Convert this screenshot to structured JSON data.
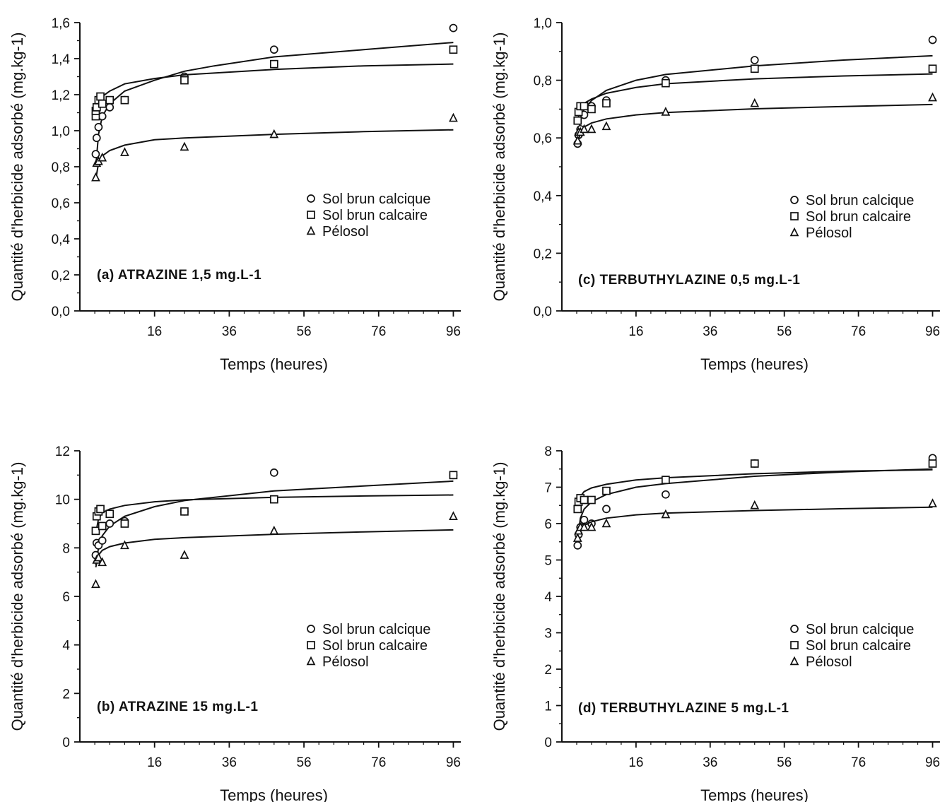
{
  "chart_data": [
    {
      "id": "a",
      "type": "scatter",
      "title": "(a) ATRAZINE 1,5 mg.L-1",
      "xlabel": "Temps (heures)",
      "ylabel": "Quantité d'herbicide adsorbé (mg.kg-1)",
      "xlim": [
        -4,
        98
      ],
      "ylim": [
        0,
        1.6
      ],
      "xticks": [
        "16",
        "36",
        "56",
        "76",
        "96"
      ],
      "yticks": [
        "0,0",
        "0,2",
        "0,4",
        "0,6",
        "0,8",
        "1,0",
        "1,2",
        "1,4",
        "1,6"
      ],
      "legend_position": "right",
      "series": [
        {
          "name": "Sol brun calcique",
          "marker": "circle",
          "points": [
            [
              0.25,
              0.87
            ],
            [
              0.5,
              0.96
            ],
            [
              1,
              1.02
            ],
            [
              2,
              1.08
            ],
            [
              4,
              1.13
            ],
            [
              8,
              1.17
            ],
            [
              24,
              1.3
            ],
            [
              48,
              1.45
            ],
            [
              96,
              1.57
            ]
          ],
          "fit": [
            [
              0.25,
              0.8
            ],
            [
              1,
              0.98
            ],
            [
              2,
              1.08
            ],
            [
              4,
              1.15
            ],
            [
              8,
              1.22
            ],
            [
              16,
              1.28
            ],
            [
              24,
              1.33
            ],
            [
              32,
              1.36
            ],
            [
              48,
              1.41
            ],
            [
              72,
              1.45
            ],
            [
              96,
              1.49
            ]
          ]
        },
        {
          "name": "Sol brun calcaire",
          "marker": "square",
          "points": [
            [
              0.25,
              1.08
            ],
            [
              0.25,
              1.11
            ],
            [
              0.5,
              1.13
            ],
            [
              1,
              1.17
            ],
            [
              1.5,
              1.19
            ],
            [
              2,
              1.15
            ],
            [
              4,
              1.17
            ],
            [
              8,
              1.17
            ],
            [
              24,
              1.28
            ],
            [
              48,
              1.37
            ],
            [
              96,
              1.45
            ]
          ],
          "fit": [
            [
              0.25,
              1.06
            ],
            [
              1,
              1.15
            ],
            [
              2,
              1.19
            ],
            [
              4,
              1.22
            ],
            [
              8,
              1.26
            ],
            [
              16,
              1.29
            ],
            [
              24,
              1.31
            ],
            [
              48,
              1.34
            ],
            [
              72,
              1.36
            ],
            [
              96,
              1.37
            ]
          ]
        },
        {
          "name": "Pélosol",
          "marker": "triangle",
          "points": [
            [
              0.25,
              0.74
            ],
            [
              0.5,
              0.82
            ],
            [
              1,
              0.83
            ],
            [
              2,
              0.85
            ],
            [
              8,
              0.88
            ],
            [
              24,
              0.91
            ],
            [
              48,
              0.98
            ],
            [
              96,
              1.07
            ]
          ],
          "fit": [
            [
              0.25,
              0.73
            ],
            [
              1,
              0.82
            ],
            [
              2,
              0.86
            ],
            [
              4,
              0.89
            ],
            [
              8,
              0.92
            ],
            [
              16,
              0.95
            ],
            [
              24,
              0.96
            ],
            [
              48,
              0.98
            ],
            [
              72,
              0.995
            ],
            [
              96,
              1.005
            ]
          ]
        }
      ]
    },
    {
      "id": "b",
      "type": "scatter",
      "title": "(b) ATRAZINE 15 mg.L-1",
      "xlabel": "Temps (heures)",
      "ylabel": "Quantité d'herbicide adsorbé (mg.kg-1)",
      "xlim": [
        -4,
        98
      ],
      "ylim": [
        0,
        12
      ],
      "xticks": [
        "16",
        "36",
        "56",
        "76",
        "96"
      ],
      "yticks": [
        "0",
        "2",
        "4",
        "6",
        "8",
        "10",
        "12"
      ],
      "legend_position": "right",
      "series": [
        {
          "name": "Sol brun calcique",
          "marker": "circle",
          "points": [
            [
              0.25,
              7.7
            ],
            [
              0.5,
              8.2
            ],
            [
              1,
              8.1
            ],
            [
              2,
              8.3
            ],
            [
              4,
              9.0
            ],
            [
              8,
              9.1
            ],
            [
              24,
              9.5
            ],
            [
              48,
              11.1
            ],
            [
              96,
              11.0
            ]
          ],
          "fit": [
            [
              0.25,
              7.3
            ],
            [
              1,
              8.0
            ],
            [
              2,
              8.5
            ],
            [
              4,
              8.9
            ],
            [
              8,
              9.3
            ],
            [
              16,
              9.7
            ],
            [
              24,
              9.95
            ],
            [
              48,
              10.35
            ],
            [
              72,
              10.55
            ],
            [
              96,
              10.75
            ]
          ]
        },
        {
          "name": "Sol brun calcaire",
          "marker": "square",
          "points": [
            [
              0.25,
              8.7
            ],
            [
              0.5,
              9.3
            ],
            [
              1,
              9.5
            ],
            [
              1.5,
              9.6
            ],
            [
              2,
              8.9
            ],
            [
              4,
              9.4
            ],
            [
              8,
              9.0
            ],
            [
              24,
              9.5
            ],
            [
              48,
              10.0
            ],
            [
              96,
              11.0
            ]
          ],
          "fit": [
            [
              0.25,
              8.6
            ],
            [
              1,
              9.2
            ],
            [
              2,
              9.45
            ],
            [
              4,
              9.6
            ],
            [
              8,
              9.75
            ],
            [
              16,
              9.9
            ],
            [
              24,
              9.98
            ],
            [
              48,
              10.08
            ],
            [
              72,
              10.14
            ],
            [
              96,
              10.18
            ]
          ]
        },
        {
          "name": "Pélosol",
          "marker": "triangle",
          "points": [
            [
              0.25,
              6.5
            ],
            [
              0.5,
              7.5
            ],
            [
              1,
              7.6
            ],
            [
              2,
              7.4
            ],
            [
              8,
              8.1
            ],
            [
              24,
              7.7
            ],
            [
              48,
              8.7
            ],
            [
              96,
              9.3
            ]
          ],
          "fit": [
            [
              0.25,
              7.2
            ],
            [
              1,
              7.7
            ],
            [
              2,
              7.9
            ],
            [
              4,
              8.05
            ],
            [
              8,
              8.2
            ],
            [
              16,
              8.35
            ],
            [
              24,
              8.42
            ],
            [
              48,
              8.56
            ],
            [
              72,
              8.66
            ],
            [
              96,
              8.74
            ]
          ]
        }
      ]
    },
    {
      "id": "c",
      "type": "scatter",
      "title": "(c) TERBUTHYLAZINE 0,5 mg.L-1",
      "xlabel": "Temps (heures)",
      "ylabel": "Quantité d'herbicide adsorbé (mg.kg-1)",
      "xlim": [
        -4,
        98
      ],
      "ylim": [
        0,
        1.0
      ],
      "xticks": [
        "16",
        "36",
        "56",
        "76",
        "96"
      ],
      "yticks": [
        "0,0",
        "0,2",
        "0,4",
        "0,6",
        "0,8",
        "1,0"
      ],
      "legend_position": "right",
      "series": [
        {
          "name": "Sol brun calcique",
          "marker": "circle",
          "points": [
            [
              0.25,
              0.58
            ],
            [
              0.5,
              0.61
            ],
            [
              1,
              0.63
            ],
            [
              2,
              0.68
            ],
            [
              4,
              0.71
            ],
            [
              8,
              0.73
            ],
            [
              24,
              0.8
            ],
            [
              48,
              0.87
            ],
            [
              96,
              0.94
            ]
          ],
          "fit": [
            [
              0.25,
              0.59
            ],
            [
              1,
              0.66
            ],
            [
              2,
              0.7
            ],
            [
              4,
              0.73
            ],
            [
              8,
              0.765
            ],
            [
              16,
              0.8
            ],
            [
              24,
              0.82
            ],
            [
              48,
              0.85
            ],
            [
              72,
              0.87
            ],
            [
              96,
              0.885
            ]
          ]
        },
        {
          "name": "Sol brun calcaire",
          "marker": "square",
          "points": [
            [
              0.25,
              0.66
            ],
            [
              0.5,
              0.69
            ],
            [
              1,
              0.71
            ],
            [
              2,
              0.71
            ],
            [
              4,
              0.7
            ],
            [
              8,
              0.72
            ],
            [
              24,
              0.79
            ],
            [
              48,
              0.84
            ],
            [
              96,
              0.84
            ]
          ],
          "fit": [
            [
              0.25,
              0.66
            ],
            [
              1,
              0.7
            ],
            [
              2,
              0.72
            ],
            [
              4,
              0.735
            ],
            [
              8,
              0.755
            ],
            [
              16,
              0.775
            ],
            [
              24,
              0.788
            ],
            [
              48,
              0.805
            ],
            [
              72,
              0.815
            ],
            [
              96,
              0.822
            ]
          ]
        },
        {
          "name": "Pélosol",
          "marker": "triangle",
          "points": [
            [
              0.25,
              0.59
            ],
            [
              0.5,
              0.62
            ],
            [
              1,
              0.62
            ],
            [
              2,
              0.63
            ],
            [
              4,
              0.63
            ],
            [
              8,
              0.64
            ],
            [
              24,
              0.69
            ],
            [
              48,
              0.72
            ],
            [
              96,
              0.74
            ]
          ],
          "fit": [
            [
              0.25,
              0.58
            ],
            [
              1,
              0.62
            ],
            [
              2,
              0.638
            ],
            [
              4,
              0.652
            ],
            [
              8,
              0.666
            ],
            [
              16,
              0.68
            ],
            [
              24,
              0.688
            ],
            [
              48,
              0.701
            ],
            [
              72,
              0.709
            ],
            [
              96,
              0.716
            ]
          ]
        }
      ]
    },
    {
      "id": "d",
      "type": "scatter",
      "title": "(d) TERBUTHYLAZINE 5 mg.L-1",
      "xlabel": "Temps (heures)",
      "ylabel": "Quantité d'herbicide adsorbé (mg.kg-1)",
      "xlim": [
        -4,
        98
      ],
      "ylim": [
        0,
        8
      ],
      "xticks": [
        "16",
        "36",
        "56",
        "76",
        "96"
      ],
      "yticks": [
        "0",
        "1",
        "2",
        "3",
        "4",
        "5",
        "6",
        "7",
        "8"
      ],
      "legend_position": "right",
      "series": [
        {
          "name": "Sol brun calcique",
          "marker": "circle",
          "points": [
            [
              0.25,
              5.4
            ],
            [
              0.5,
              5.7
            ],
            [
              1,
              5.9
            ],
            [
              2,
              6.1
            ],
            [
              4,
              6.0
            ],
            [
              8,
              6.4
            ],
            [
              24,
              6.8
            ],
            [
              48,
              7.65
            ],
            [
              96,
              7.8
            ]
          ],
          "fit": [
            [
              0.25,
              5.6
            ],
            [
              1,
              6.15
            ],
            [
              2,
              6.4
            ],
            [
              4,
              6.6
            ],
            [
              8,
              6.8
            ],
            [
              16,
              7.0
            ],
            [
              24,
              7.1
            ],
            [
              48,
              7.3
            ],
            [
              72,
              7.42
            ],
            [
              96,
              7.5
            ]
          ]
        },
        {
          "name": "Sol brun calcaire",
          "marker": "square",
          "points": [
            [
              0.25,
              6.4
            ],
            [
              0.5,
              6.6
            ],
            [
              1,
              6.7
            ],
            [
              2,
              6.65
            ],
            [
              4,
              6.65
            ],
            [
              8,
              6.9
            ],
            [
              24,
              7.2
            ],
            [
              48,
              7.65
            ],
            [
              96,
              7.65
            ]
          ],
          "fit": [
            [
              0.25,
              6.45
            ],
            [
              1,
              6.75
            ],
            [
              2,
              6.88
            ],
            [
              4,
              6.98
            ],
            [
              8,
              7.08
            ],
            [
              16,
              7.2
            ],
            [
              24,
              7.26
            ],
            [
              48,
              7.37
            ],
            [
              72,
              7.44
            ],
            [
              96,
              7.48
            ]
          ]
        },
        {
          "name": "Pélosol",
          "marker": "triangle",
          "points": [
            [
              0.25,
              5.6
            ],
            [
              0.5,
              5.8
            ],
            [
              1,
              5.9
            ],
            [
              2,
              5.9
            ],
            [
              4,
              5.9
            ],
            [
              8,
              6.0
            ],
            [
              24,
              6.25
            ],
            [
              48,
              6.5
            ],
            [
              96,
              6.55
            ]
          ],
          "fit": [
            [
              0.25,
              5.7
            ],
            [
              1,
              5.85
            ],
            [
              2,
              5.95
            ],
            [
              4,
              6.05
            ],
            [
              8,
              6.15
            ],
            [
              16,
              6.24
            ],
            [
              24,
              6.29
            ],
            [
              48,
              6.36
            ],
            [
              72,
              6.41
            ],
            [
              96,
              6.45
            ]
          ]
        }
      ]
    }
  ]
}
